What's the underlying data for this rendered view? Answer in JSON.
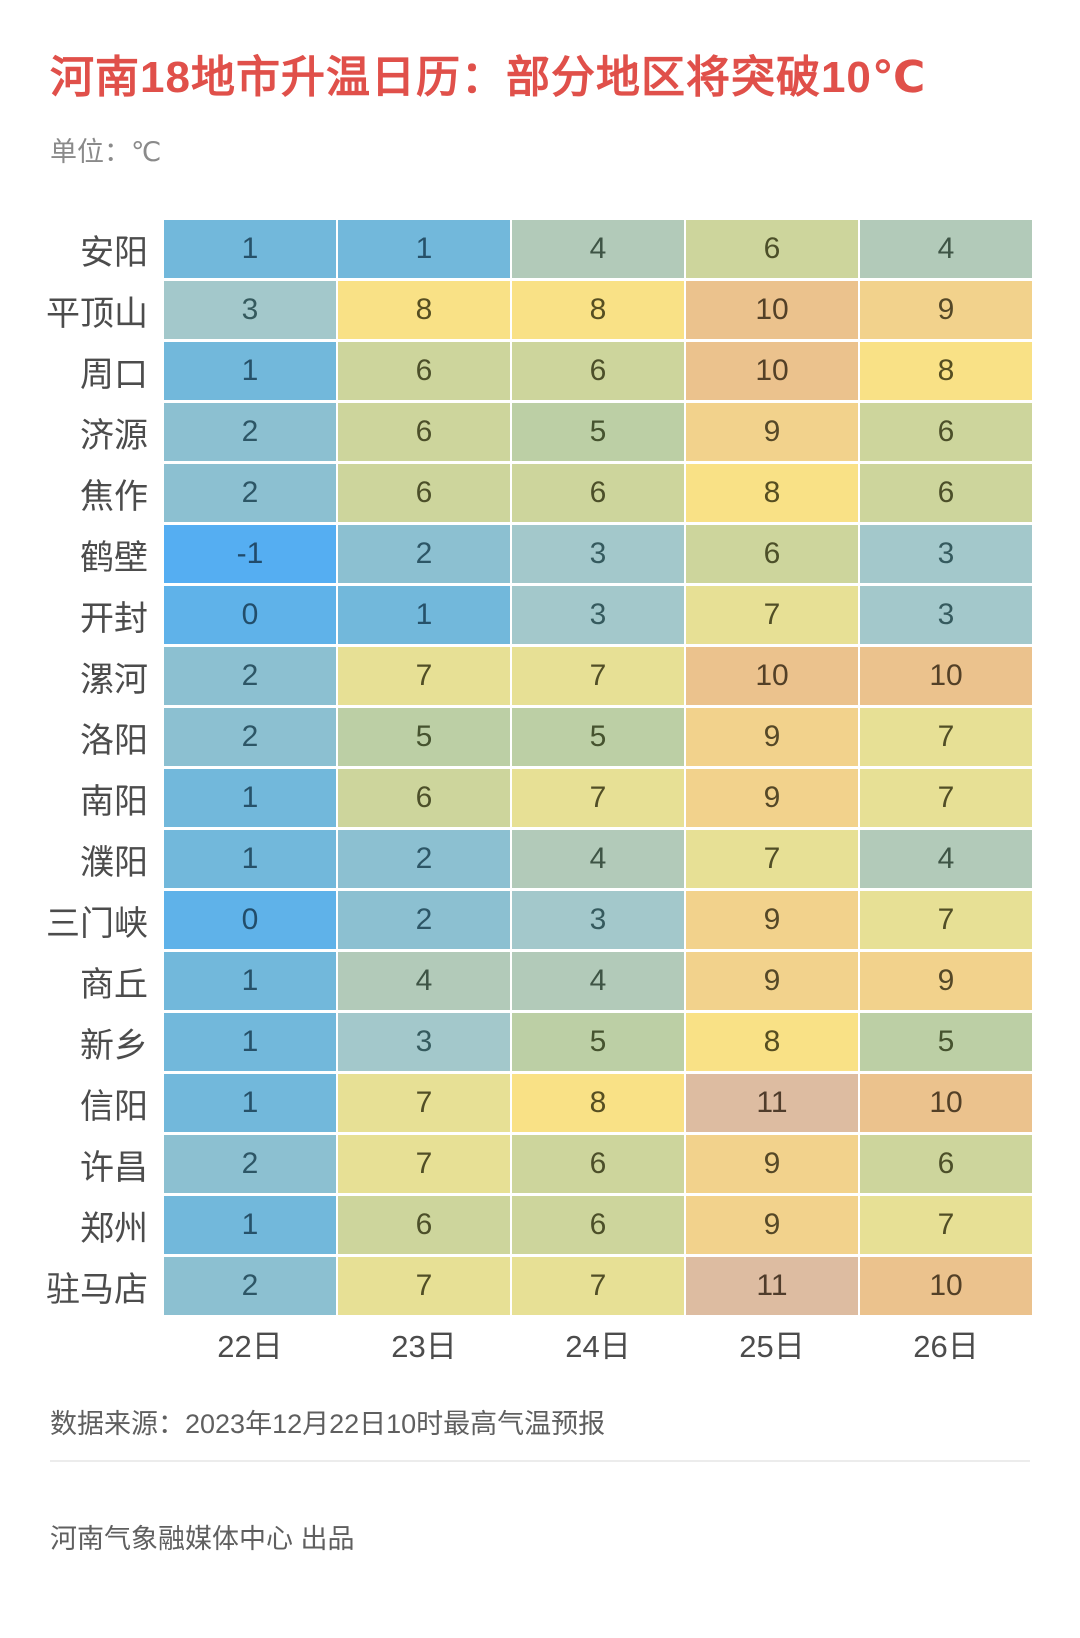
{
  "header": {
    "title": "河南18地市升温日历：部分地区将突破10℃",
    "title_color": "#e0504a",
    "unit_label": "单位：℃"
  },
  "chart_data": {
    "type": "heatmap",
    "title": "河南18地市升温日历：部分地区将突破10℃",
    "unit": "℃",
    "legend_position": "none",
    "grid": false,
    "value_range": [
      -1,
      11
    ],
    "categories": [
      "22日",
      "23日",
      "24日",
      "25日",
      "26日"
    ],
    "rows": [
      {
        "city": "安阳",
        "values": [
          1,
          1,
          4,
          6,
          4
        ]
      },
      {
        "city": "平顶山",
        "values": [
          3,
          8,
          8,
          10,
          9
        ]
      },
      {
        "city": "周口",
        "values": [
          1,
          6,
          6,
          10,
          8
        ]
      },
      {
        "city": "济源",
        "values": [
          2,
          6,
          5,
          9,
          6
        ]
      },
      {
        "city": "焦作",
        "values": [
          2,
          6,
          6,
          8,
          6
        ]
      },
      {
        "city": "鹤壁",
        "values": [
          -1,
          2,
          3,
          6,
          3
        ]
      },
      {
        "city": "开封",
        "values": [
          0,
          1,
          3,
          7,
          3
        ]
      },
      {
        "city": "漯河",
        "values": [
          2,
          7,
          7,
          10,
          10
        ]
      },
      {
        "city": "洛阳",
        "values": [
          2,
          5,
          5,
          9,
          7
        ]
      },
      {
        "city": "南阳",
        "values": [
          1,
          6,
          7,
          9,
          7
        ]
      },
      {
        "city": "濮阳",
        "values": [
          1,
          2,
          4,
          7,
          4
        ]
      },
      {
        "city": "三门峡",
        "values": [
          0,
          2,
          3,
          9,
          7
        ]
      },
      {
        "city": "商丘",
        "values": [
          1,
          4,
          4,
          9,
          9
        ]
      },
      {
        "city": "新乡",
        "values": [
          1,
          3,
          5,
          8,
          5
        ]
      },
      {
        "city": "信阳",
        "values": [
          1,
          7,
          8,
          11,
          10
        ]
      },
      {
        "city": "许昌",
        "values": [
          2,
          7,
          6,
          9,
          6
        ]
      },
      {
        "city": "郑州",
        "values": [
          1,
          6,
          6,
          9,
          7
        ]
      },
      {
        "city": "驻马店",
        "values": [
          2,
          7,
          7,
          11,
          10
        ]
      }
    ],
    "palette": {
      "-1": {
        "bg": "#55aef2",
        "fg": "#214b6b"
      },
      "0": {
        "bg": "#5fb2e9",
        "fg": "#224d6a"
      },
      "1": {
        "bg": "#72b8db",
        "fg": "#265169"
      },
      "2": {
        "bg": "#8cc0d1",
        "fg": "#2d5666"
      },
      "3": {
        "bg": "#a3c8cb",
        "fg": "#355a5e"
      },
      "4": {
        "bg": "#b2cab9",
        "fg": "#3e5445"
      },
      "5": {
        "bg": "#bccfa5",
        "fg": "#46532f"
      },
      "6": {
        "bg": "#cdd59c",
        "fg": "#4c4f29"
      },
      "7": {
        "bg": "#e7e095",
        "fg": "#514e26"
      },
      "8": {
        "bg": "#f9e186",
        "fg": "#564e21"
      },
      "9": {
        "bg": "#f2d28c",
        "fg": "#554827"
      },
      "10": {
        "bg": "#ebc28d",
        "fg": "#534027"
      },
      "11": {
        "bg": "#ddbca1",
        "fg": "#4f3c2b"
      }
    }
  },
  "footer": {
    "source": "数据来源：2023年12月22日10时最高气温预报",
    "credit": "河南气象融媒体中心 出品"
  }
}
